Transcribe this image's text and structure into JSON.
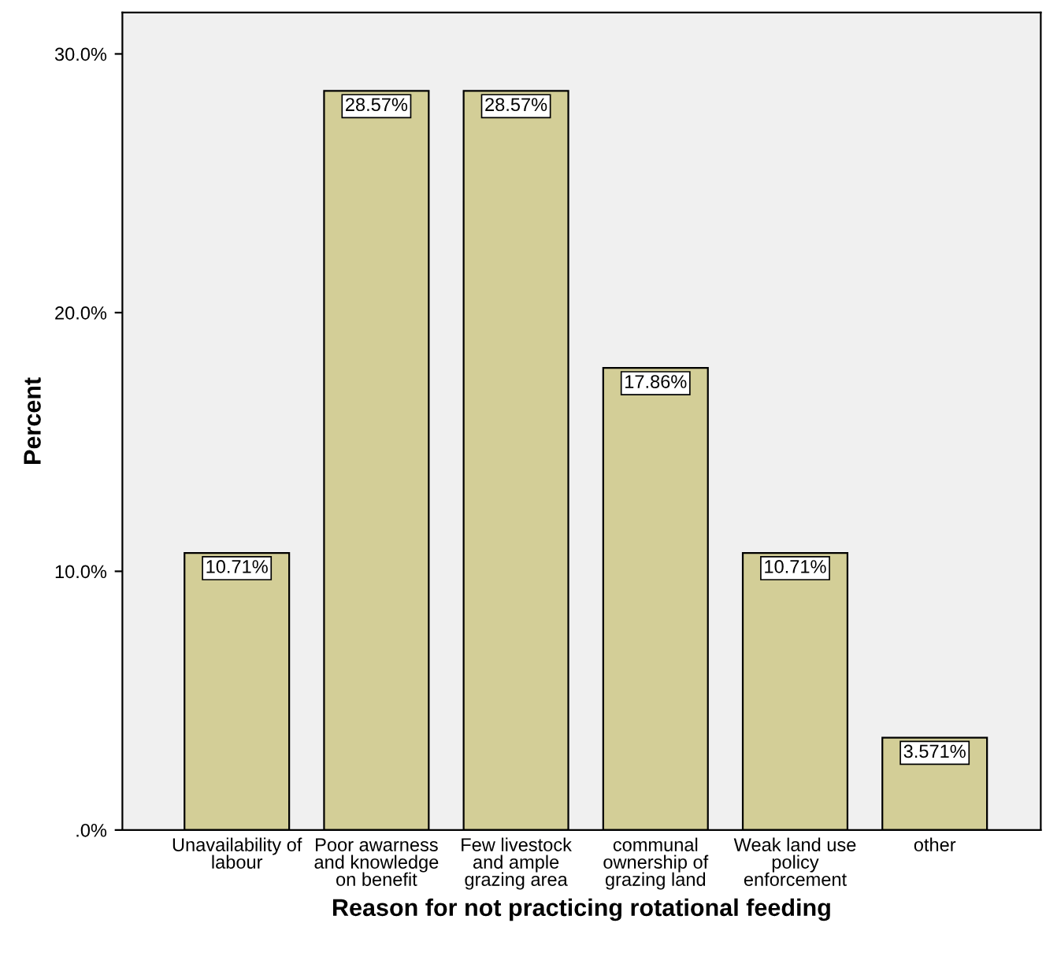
{
  "chart_data": {
    "type": "bar",
    "xlabel": "Reason for not practicing rotational feeding",
    "ylabel": "Percent",
    "categories": [
      "Unavailability of\nlabour",
      "Poor awarness\nand knowledge\non benefit",
      "Few livestock\nand ample\ngrazing area",
      "communal\nownership of\ngrazing land",
      "Weak land use\npolicy\nenforcement",
      "other"
    ],
    "values": [
      10.71,
      28.57,
      28.57,
      17.86,
      10.71,
      3.571
    ],
    "value_labels": [
      "10.71%",
      "28.57%",
      "28.57%",
      "17.86%",
      "10.71%",
      "3.571%"
    ],
    "color": "#d3ce97",
    "ylim": [
      0,
      31.6
    ],
    "yticks": [
      {
        "value": 0,
        "label": ".0%"
      },
      {
        "value": 10,
        "label": "10.0%"
      },
      {
        "value": 20,
        "label": "20.0%"
      },
      {
        "value": 30,
        "label": "30.0%"
      }
    ],
    "grid": false,
    "legend": false
  }
}
